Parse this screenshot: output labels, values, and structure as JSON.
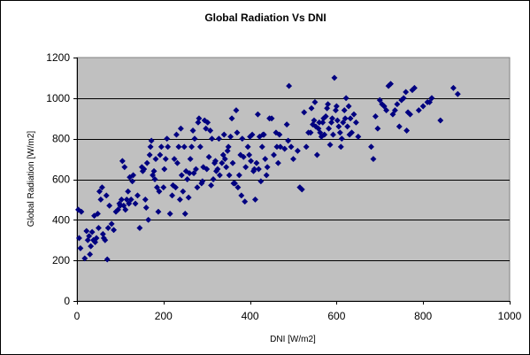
{
  "chart_data": {
    "type": "scatter",
    "title": "Global Radiation Vs DNI",
    "xlabel": "DNI [W/m2]",
    "ylabel": "Global Radiation [W/m2]",
    "xlim": [
      0,
      1000
    ],
    "ylim": [
      0,
      1200
    ],
    "x_ticks": [
      "0",
      "200",
      "400",
      "600",
      "800",
      "1000"
    ],
    "y_ticks": [
      "0",
      "200",
      "400",
      "600",
      "800",
      "1000",
      "1200"
    ],
    "grid": "horizontal major gridlines",
    "legend": "none",
    "colors": {
      "plot_area": "#c0c0c0",
      "marker": "#000080",
      "gridline": "#000000"
    },
    "marker": "diamond",
    "points": [
      [
        3,
        450
      ],
      [
        5,
        310
      ],
      [
        8,
        260
      ],
      [
        10,
        440
      ],
      [
        18,
        210
      ],
      [
        22,
        345
      ],
      [
        25,
        300
      ],
      [
        28,
        320
      ],
      [
        30,
        230
      ],
      [
        32,
        270
      ],
      [
        35,
        340
      ],
      [
        38,
        300
      ],
      [
        40,
        420
      ],
      [
        42,
        290
      ],
      [
        45,
        310
      ],
      [
        48,
        430
      ],
      [
        50,
        360
      ],
      [
        52,
        540
      ],
      [
        55,
        500
      ],
      [
        58,
        560
      ],
      [
        60,
        330
      ],
      [
        62,
        310
      ],
      [
        65,
        300
      ],
      [
        68,
        520
      ],
      [
        70,
        205
      ],
      [
        72,
        360
      ],
      [
        75,
        470
      ],
      [
        80,
        380
      ],
      [
        85,
        350
      ],
      [
        90,
        440
      ],
      [
        95,
        450
      ],
      [
        98,
        480
      ],
      [
        100,
        470
      ],
      [
        103,
        500
      ],
      [
        105,
        690
      ],
      [
        108,
        470
      ],
      [
        110,
        660
      ],
      [
        112,
        450
      ],
      [
        115,
        500
      ],
      [
        118,
        540
      ],
      [
        120,
        480
      ],
      [
        122,
        610
      ],
      [
        125,
        500
      ],
      [
        128,
        590
      ],
      [
        130,
        620
      ],
      [
        135,
        480
      ],
      [
        140,
        520
      ],
      [
        145,
        360
      ],
      [
        150,
        660
      ],
      [
        152,
        640
      ],
      [
        155,
        650
      ],
      [
        158,
        500
      ],
      [
        160,
        460
      ],
      [
        162,
        680
      ],
      [
        165,
        400
      ],
      [
        168,
        720
      ],
      [
        170,
        760
      ],
      [
        172,
        790
      ],
      [
        175,
        620
      ],
      [
        178,
        640
      ],
      [
        180,
        600
      ],
      [
        182,
        700
      ],
      [
        185,
        560
      ],
      [
        188,
        440
      ],
      [
        190,
        540
      ],
      [
        192,
        720
      ],
      [
        195,
        760
      ],
      [
        200,
        560
      ],
      [
        202,
        650
      ],
      [
        205,
        700
      ],
      [
        208,
        800
      ],
      [
        210,
        760
      ],
      [
        215,
        430
      ],
      [
        220,
        520
      ],
      [
        222,
        570
      ],
      [
        225,
        700
      ],
      [
        228,
        560
      ],
      [
        230,
        820
      ],
      [
        232,
        680
      ],
      [
        235,
        760
      ],
      [
        238,
        500
      ],
      [
        240,
        850
      ],
      [
        242,
        620
      ],
      [
        245,
        540
      ],
      [
        248,
        760
      ],
      [
        250,
        430
      ],
      [
        252,
        640
      ],
      [
        255,
        600
      ],
      [
        258,
        510
      ],
      [
        260,
        630
      ],
      [
        262,
        700
      ],
      [
        265,
        760
      ],
      [
        268,
        840
      ],
      [
        270,
        630
      ],
      [
        272,
        800
      ],
      [
        275,
        650
      ],
      [
        278,
        560
      ],
      [
        280,
        880
      ],
      [
        282,
        900
      ],
      [
        285,
        760
      ],
      [
        288,
        580
      ],
      [
        290,
        590
      ],
      [
        292,
        660
      ],
      [
        295,
        890
      ],
      [
        298,
        850
      ],
      [
        300,
        650
      ],
      [
        302,
        880
      ],
      [
        305,
        710
      ],
      [
        308,
        840
      ],
      [
        310,
        570
      ],
      [
        312,
        800
      ],
      [
        315,
        600
      ],
      [
        318,
        680
      ],
      [
        320,
        690
      ],
      [
        322,
        640
      ],
      [
        325,
        650
      ],
      [
        328,
        800
      ],
      [
        330,
        620
      ],
      [
        335,
        680
      ],
      [
        338,
        720
      ],
      [
        340,
        820
      ],
      [
        342,
        700
      ],
      [
        345,
        660
      ],
      [
        348,
        740
      ],
      [
        350,
        760
      ],
      [
        352,
        620
      ],
      [
        355,
        810
      ],
      [
        358,
        900
      ],
      [
        360,
        680
      ],
      [
        362,
        580
      ],
      [
        365,
        580
      ],
      [
        368,
        940
      ],
      [
        370,
        830
      ],
      [
        372,
        560
      ],
      [
        375,
        620
      ],
      [
        378,
        720
      ],
      [
        380,
        520
      ],
      [
        382,
        800
      ],
      [
        385,
        710
      ],
      [
        388,
        490
      ],
      [
        390,
        660
      ],
      [
        395,
        760
      ],
      [
        398,
        720
      ],
      [
        400,
        810
      ],
      [
        402,
        690
      ],
      [
        405,
        820
      ],
      [
        408,
        640
      ],
      [
        410,
        650
      ],
      [
        412,
        500
      ],
      [
        415,
        680
      ],
      [
        418,
        920
      ],
      [
        420,
        650
      ],
      [
        422,
        810
      ],
      [
        425,
        590
      ],
      [
        428,
        760
      ],
      [
        430,
        820
      ],
      [
        432,
        820
      ],
      [
        435,
        700
      ],
      [
        438,
        620
      ],
      [
        440,
        660
      ],
      [
        445,
        900
      ],
      [
        450,
        900
      ],
      [
        455,
        720
      ],
      [
        460,
        830
      ],
      [
        462,
        760
      ],
      [
        465,
        680
      ],
      [
        468,
        820
      ],
      [
        470,
        760
      ],
      [
        480,
        750
      ],
      [
        485,
        870
      ],
      [
        488,
        790
      ],
      [
        490,
        1060
      ],
      [
        495,
        760
      ],
      [
        500,
        700
      ],
      [
        510,
        740
      ],
      [
        515,
        560
      ],
      [
        520,
        550
      ],
      [
        525,
        930
      ],
      [
        530,
        760
      ],
      [
        535,
        830
      ],
      [
        540,
        830
      ],
      [
        542,
        950
      ],
      [
        545,
        870
      ],
      [
        548,
        890
      ],
      [
        550,
        980
      ],
      [
        552,
        860
      ],
      [
        555,
        720
      ],
      [
        558,
        850
      ],
      [
        560,
        880
      ],
      [
        562,
        830
      ],
      [
        565,
        810
      ],
      [
        568,
        880
      ],
      [
        570,
        900
      ],
      [
        572,
        820
      ],
      [
        575,
        910
      ],
      [
        578,
        950
      ],
      [
        580,
        970
      ],
      [
        582,
        850
      ],
      [
        585,
        770
      ],
      [
        588,
        880
      ],
      [
        590,
        900
      ],
      [
        592,
        820
      ],
      [
        595,
        1100
      ],
      [
        598,
        940
      ],
      [
        600,
        960
      ],
      [
        602,
        890
      ],
      [
        605,
        860
      ],
      [
        608,
        830
      ],
      [
        610,
        760
      ],
      [
        612,
        800
      ],
      [
        615,
        880
      ],
      [
        618,
        940
      ],
      [
        620,
        900
      ],
      [
        622,
        1000
      ],
      [
        625,
        860
      ],
      [
        628,
        960
      ],
      [
        630,
        820
      ],
      [
        632,
        900
      ],
      [
        635,
        830
      ],
      [
        640,
        920
      ],
      [
        645,
        880
      ],
      [
        650,
        810
      ],
      [
        680,
        760
      ],
      [
        685,
        700
      ],
      [
        690,
        910
      ],
      [
        695,
        850
      ],
      [
        700,
        990
      ],
      [
        705,
        970
      ],
      [
        710,
        960
      ],
      [
        715,
        940
      ],
      [
        720,
        1060
      ],
      [
        725,
        1070
      ],
      [
        730,
        920
      ],
      [
        735,
        940
      ],
      [
        740,
        970
      ],
      [
        745,
        860
      ],
      [
        750,
        990
      ],
      [
        755,
        1000
      ],
      [
        760,
        1030
      ],
      [
        762,
        840
      ],
      [
        765,
        930
      ],
      [
        770,
        920
      ],
      [
        775,
        1040
      ],
      [
        780,
        1050
      ],
      [
        790,
        940
      ],
      [
        800,
        960
      ],
      [
        810,
        980
      ],
      [
        815,
        980
      ],
      [
        820,
        1000
      ],
      [
        840,
        890
      ],
      [
        870,
        1050
      ],
      [
        880,
        1020
      ]
    ]
  }
}
